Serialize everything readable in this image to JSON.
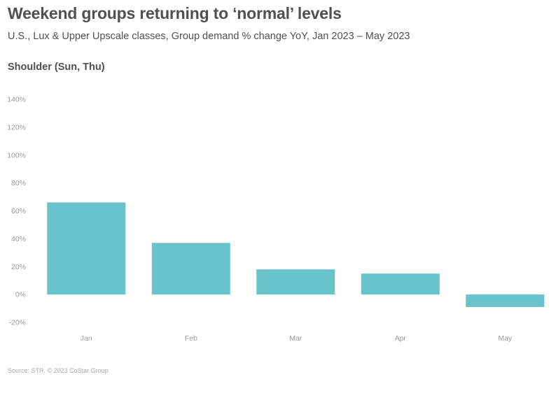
{
  "header": {
    "title": "Weekend groups returning to ‘normal’ levels",
    "subtitle": "U.S., Lux & Upper Upscale classes, Group demand % change YoY, Jan 2023 – May 2023",
    "panel_title": "Shoulder (Sun, Thu)"
  },
  "footer": {
    "source": "Source: STR. © 2023 CoStar Group"
  },
  "chart_data": {
    "type": "bar",
    "title": "Weekend groups returning to ‘normal’ levels",
    "subtitle": "U.S., Lux & Upper Upscale classes, Group demand % change YoY, Jan 2023 – May 2023",
    "panel": "Shoulder (Sun, Thu)",
    "categories": [
      "Jan",
      "Feb",
      "Mar",
      "Apr",
      "May"
    ],
    "values": [
      66,
      37,
      18,
      15,
      -9
    ],
    "unit": "%",
    "ylim": [
      -20,
      140
    ],
    "yticks": [
      -20,
      0,
      20,
      40,
      60,
      80,
      100,
      120,
      140
    ],
    "ytick_labels": [
      "-20%",
      "0%",
      "20%",
      "40%",
      "60%",
      "80%",
      "100%",
      "120%",
      "140%"
    ],
    "xlabel": "",
    "ylabel": "",
    "grid": false,
    "legend": "none",
    "color": "#68C4CA"
  }
}
